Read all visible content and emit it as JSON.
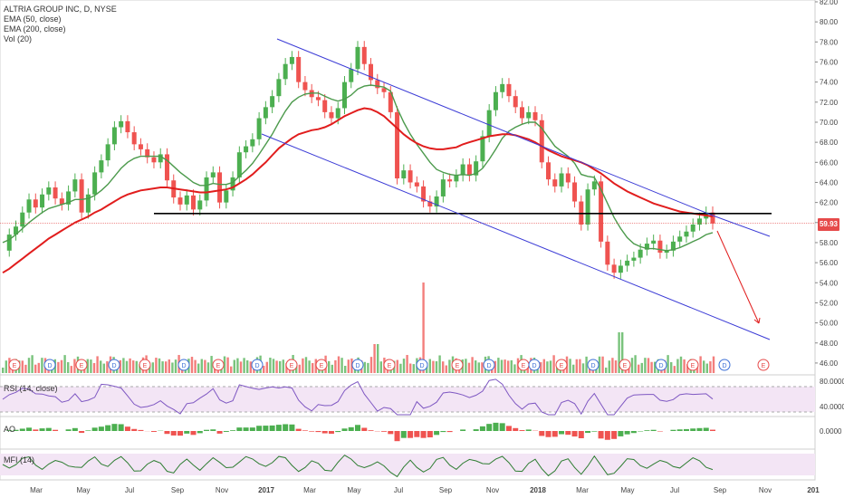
{
  "header": {
    "title": "ALTRIA GROUP INC, D, NYSE",
    "indicators": [
      "EMA (50, close)",
      "EMA (200, close)",
      "Vol (20)"
    ]
  },
  "last_price_label": "59.93",
  "pane_labels": {
    "rsi": "RSI (14, close)",
    "ao": "AO",
    "mfi": "MFI (14)"
  },
  "colors": {
    "up": "#4caf50",
    "down": "#ef5350",
    "ema50": "#4c9a4c",
    "ema200": "#e11d1d",
    "channel": "#3b3bd6",
    "support": "#000000",
    "rsi": "#7e57c2",
    "mfi": "#2e7d32"
  },
  "chart_data": {
    "type": "line",
    "title": "ALTRIA GROUP INC, D, NYSE",
    "xlabel": "",
    "ylabel": "",
    "x_ticks": [
      "Mar",
      "May",
      "Jul",
      "Sep",
      "Nov",
      "2017",
      "Mar",
      "May",
      "Jul",
      "Sep",
      "Nov",
      "2018",
      "Mar",
      "May",
      "Jul",
      "Sep",
      "Nov",
      "201"
    ],
    "y_ticks": [
      "82.00",
      "80.00",
      "78.00",
      "76.00",
      "74.00",
      "72.00",
      "70.00",
      "68.00",
      "66.00",
      "64.00",
      "62.00",
      "60.00",
      "58.00",
      "56.00",
      "54.00",
      "52.00",
      "50.00",
      "48.00",
      "46.00"
    ],
    "ylim": [
      45,
      82
    ],
    "last_price": 59.93,
    "series": [
      {
        "name": "close",
        "values": [
          57.2,
          58.8,
          59.6,
          61.0,
          62.3,
          61.5,
          62.8,
          63.5,
          62.4,
          61.8,
          63.1,
          64.3,
          61.0,
          62.8,
          65.0,
          66.2,
          67.8,
          69.5,
          70.1,
          69.0,
          67.8,
          67.3,
          66.5,
          66.0,
          66.8,
          64.2,
          62.5,
          61.8,
          62.7,
          61.3,
          62.2,
          64.5,
          65.0,
          62.0,
          63.2,
          64.5,
          67.0,
          67.6,
          68.3,
          70.4,
          71.5,
          72.6,
          74.3,
          75.8,
          76.5,
          74.0,
          73.2,
          72.5,
          72.2,
          71.0,
          70.4,
          71.4,
          74.0,
          75.3,
          77.5,
          75.8,
          74.2,
          73.4,
          73.0,
          71.0,
          64.4,
          65.2,
          64.0,
          63.6,
          62.1,
          61.6,
          62.6,
          64.3,
          64.1,
          64.7,
          65.8,
          64.7,
          66.1,
          68.6,
          71.2,
          73.0,
          73.8,
          72.6,
          71.5,
          70.4,
          71.0,
          70.2,
          66.0,
          64.3,
          63.6,
          64.9,
          64.0,
          62.1,
          59.8,
          63.3,
          64.1,
          58.1,
          55.8,
          55.0,
          55.7,
          56.2,
          56.5,
          57.3,
          57.9,
          58.2,
          57.0,
          57.2,
          58.1,
          58.6,
          59.1,
          59.8,
          60.4,
          61.0,
          59.9
        ]
      },
      {
        "name": "EMA (50, close)",
        "values": [
          58.0,
          58.3,
          58.8,
          59.4,
          60.0,
          60.5,
          61.0,
          61.4,
          61.6,
          61.8,
          62.0,
          62.3,
          62.3,
          62.4,
          62.7,
          63.2,
          63.8,
          64.6,
          65.4,
          66.0,
          66.4,
          66.6,
          66.6,
          66.6,
          66.6,
          66.2,
          65.6,
          65.0,
          64.5,
          64.0,
          63.7,
          63.7,
          63.9,
          63.8,
          63.8,
          64.0,
          64.6,
          65.2,
          65.9,
          66.8,
          67.8,
          68.8,
          70.0,
          71.1,
          72.0,
          72.5,
          72.8,
          72.9,
          72.9,
          72.6,
          72.3,
          72.1,
          72.3,
          72.7,
          73.3,
          73.6,
          73.7,
          73.6,
          73.5,
          73.1,
          71.4,
          70.0,
          68.8,
          67.8,
          66.9,
          66.0,
          65.3,
          65.0,
          64.8,
          64.7,
          64.8,
          64.7,
          64.9,
          65.4,
          66.3,
          67.3,
          68.4,
          69.1,
          69.5,
          69.8,
          70.0,
          70.0,
          69.4,
          68.5,
          67.6,
          67.1,
          66.6,
          65.9,
          64.8,
          64.6,
          64.5,
          63.3,
          61.9,
          60.5,
          59.4,
          58.5,
          57.9,
          57.6,
          57.4,
          57.4,
          57.3,
          57.2,
          57.3,
          57.5,
          57.8,
          58.1,
          58.4,
          58.8,
          59.0
        ]
      },
      {
        "name": "EMA (200, close)",
        "values": [
          55.0,
          55.4,
          55.9,
          56.4,
          56.9,
          57.4,
          57.9,
          58.4,
          58.8,
          59.2,
          59.6,
          60.0,
          60.3,
          60.6,
          61.0,
          61.3,
          61.7,
          62.1,
          62.5,
          62.8,
          63.0,
          63.2,
          63.3,
          63.4,
          63.5,
          63.5,
          63.4,
          63.3,
          63.2,
          63.1,
          63.0,
          63.0,
          63.1,
          63.2,
          63.3,
          63.5,
          63.9,
          64.3,
          64.8,
          65.4,
          66.0,
          66.7,
          67.4,
          67.9,
          68.4,
          68.8,
          69.0,
          69.2,
          69.3,
          69.5,
          69.8,
          70.2,
          70.6,
          70.9,
          71.2,
          71.4,
          71.3,
          71.0,
          70.6,
          70.0,
          69.4,
          68.8,
          68.3,
          67.9,
          67.6,
          67.4,
          67.3,
          67.3,
          67.4,
          67.5,
          67.8,
          68.0,
          68.2,
          68.4,
          68.6,
          68.7,
          68.8,
          68.8,
          68.7,
          68.5,
          68.3,
          68.0,
          67.6,
          67.2,
          66.9,
          66.6,
          66.4,
          66.2,
          66.0,
          65.7,
          65.3,
          64.9,
          64.4,
          63.9,
          63.5,
          63.1,
          62.8,
          62.5,
          62.2,
          61.9,
          61.7,
          61.5,
          61.3,
          61.1,
          61.0,
          60.9,
          60.8,
          60.7,
          60.6
        ]
      }
    ],
    "support_level": 60.9,
    "channel_upper": [
      [
        306,
        43
      ],
      [
        787,
        238
      ]
    ],
    "channel_lower": [
      [
        289,
        148
      ],
      [
        850,
        375
      ]
    ],
    "projection_arrow": [
      [
        792,
        255
      ],
      [
        838,
        357
      ]
    ],
    "volume_spike_months": [
      "Jul 2017",
      "May 2018"
    ],
    "rsi": {
      "label": "RSI (14, close)",
      "y_ticks": [
        "80.0000",
        "40.0000"
      ],
      "upper": 70,
      "lower": 30
    },
    "ao": {
      "label": "AO",
      "y_ticks": [
        "0.0000"
      ]
    },
    "mfi": {
      "label": "MFI (14)",
      "y_ticks": []
    },
    "event_markers": [
      "E",
      "D",
      "E",
      "D",
      "E",
      "D",
      "E",
      "D",
      "E",
      "E",
      "D",
      "E",
      "D",
      "E",
      "D",
      "E",
      "D",
      "E",
      "D",
      "E",
      "D",
      "E",
      "D",
      "E"
    ]
  }
}
